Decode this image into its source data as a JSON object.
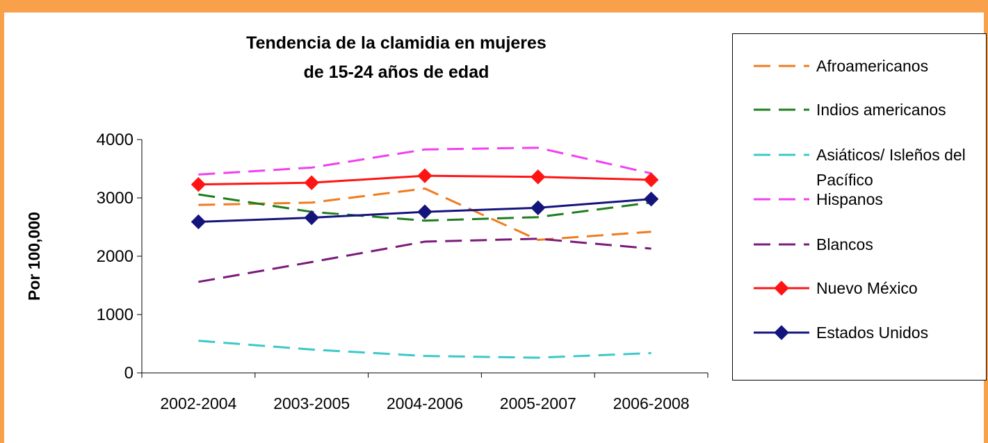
{
  "chart_data": {
    "type": "line",
    "title": "Tendencia de la clamidia en mujeres",
    "subtitle": "de 15-24 años de edad",
    "y_label": "Por 100,000",
    "categories": [
      "2002-2004",
      "2003-2005",
      "2004-2006",
      "2005-2007",
      "2006-2008"
    ],
    "ylim": [
      0,
      4000
    ],
    "yticks": [
      0,
      1000,
      2000,
      3000,
      4000
    ],
    "grid": false,
    "legend": "right",
    "series": [
      {
        "name": "Afroamericanos",
        "color": "#f07b1d",
        "dashed": true,
        "marker": "none",
        "values": [
          2880,
          2920,
          3160,
          2280,
          2420
        ]
      },
      {
        "name": "Indios americanos",
        "color": "#1e7d1e",
        "dashed": true,
        "marker": "none",
        "values": [
          3060,
          2760,
          2610,
          2670,
          2920
        ]
      },
      {
        "name": "Asiáticos/ Isleños del Pacífico",
        "color": "#3cc8c8",
        "dashed": true,
        "marker": "none",
        "values": [
          550,
          400,
          290,
          260,
          340
        ]
      },
      {
        "name": "Hispanos",
        "color": "#f040f0",
        "dashed": true,
        "marker": "none",
        "values": [
          3400,
          3520,
          3830,
          3860,
          3420
        ]
      },
      {
        "name": "Blancos",
        "color": "#7a1a7a",
        "dashed": true,
        "marker": "none",
        "values": [
          1560,
          1900,
          2250,
          2300,
          2130
        ]
      },
      {
        "name": "Nuevo México",
        "color": "#ff1414",
        "dashed": false,
        "marker": "diamond",
        "values": [
          3230,
          3260,
          3380,
          3360,
          3310
        ]
      },
      {
        "name": "Estados Unidos",
        "color": "#14147d",
        "dashed": false,
        "marker": "diamond",
        "values": [
          2590,
          2660,
          2760,
          2830,
          2980
        ]
      }
    ]
  }
}
